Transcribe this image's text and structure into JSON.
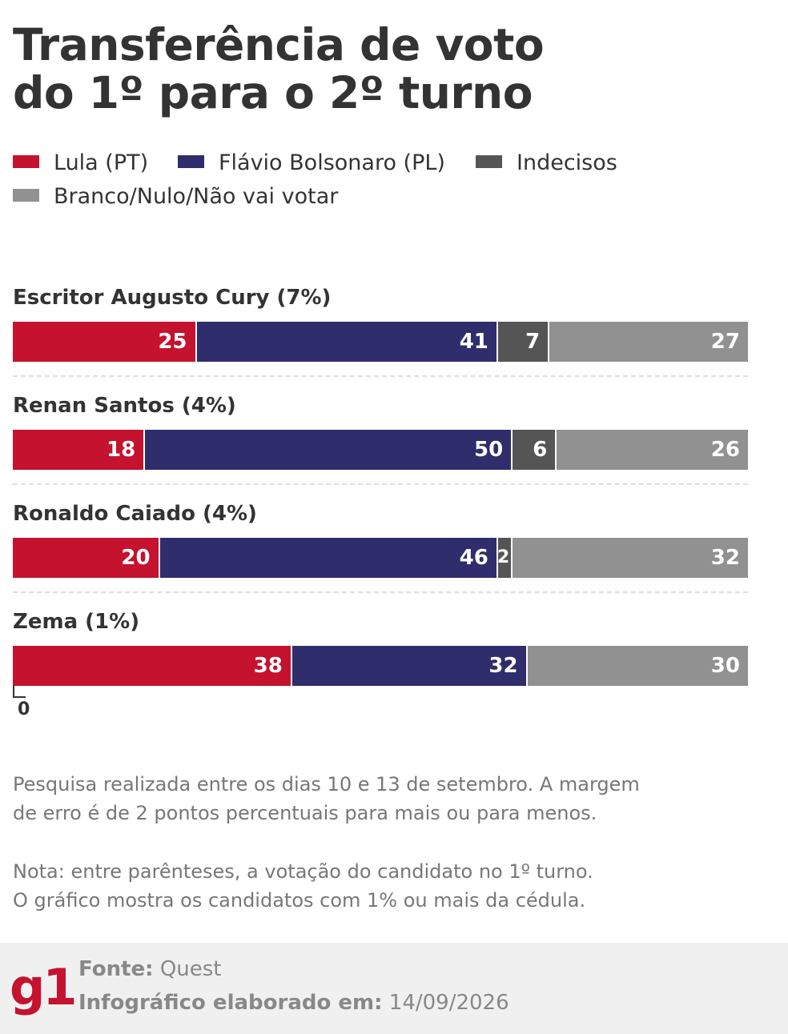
{
  "title": {
    "line1": "Transferência de voto",
    "line2": "do 1º para o 2º turno"
  },
  "legend": [
    {
      "label": "Lula (PT)",
      "color": "#c4122f"
    },
    {
      "label": "Flávio Bolsonaro (PL)",
      "color": "#2f2d6b"
    },
    {
      "label": "Indecisos",
      "color": "#555555"
    },
    {
      "label": "Branco/Nulo/Não vai votar",
      "color": "#919191"
    }
  ],
  "chart_data": {
    "type": "bar",
    "orientation": "horizontal",
    "stacked": true,
    "categories": [
      "Escritor Augusto Cury (7%)",
      "Renan Santos (4%)",
      "Ronaldo Caiado (4%)",
      "Zema (1%)"
    ],
    "series": [
      {
        "name": "Lula (PT)",
        "color": "#c4122f",
        "values": [
          25,
          18,
          20,
          38
        ],
        "labels": [
          "25",
          "18",
          "20",
          "38"
        ]
      },
      {
        "name": "Flávio Bolsonaro (PL)",
        "color": "#2f2d6b",
        "values": [
          41,
          50,
          46,
          32
        ],
        "labels": [
          "41",
          "50",
          "46",
          "32"
        ]
      },
      {
        "name": "Indecisos",
        "color": "#555555",
        "values": [
          7,
          6,
          2,
          0
        ],
        "labels": [
          "7",
          "6",
          "2",
          "0"
        ]
      },
      {
        "name": "Branco/Nulo/Não vai votar",
        "color": "#919191",
        "values": [
          27,
          26,
          32,
          30
        ],
        "labels": [
          "27",
          "26",
          "32",
          "30"
        ]
      }
    ],
    "xlim": [
      0,
      100
    ]
  },
  "notes": {
    "survey_line1": "Pesquisa realizada entre os dias 10 e 13 de setembro. A margem",
    "survey_line2": "de erro é de 2 pontos percentuais para mais ou para menos.",
    "note_line1": "Nota: entre parênteses, a votação do candidato no 1º turno.",
    "note_line2": "O gráfico mostra os candidatos com 1% ou mais da cédula."
  },
  "footer": {
    "logo": "g1",
    "source_label": "Fonte:",
    "source_value": "Quest",
    "made_label": "Infográfico elaborado em:",
    "made_value": "14/09/2026"
  }
}
